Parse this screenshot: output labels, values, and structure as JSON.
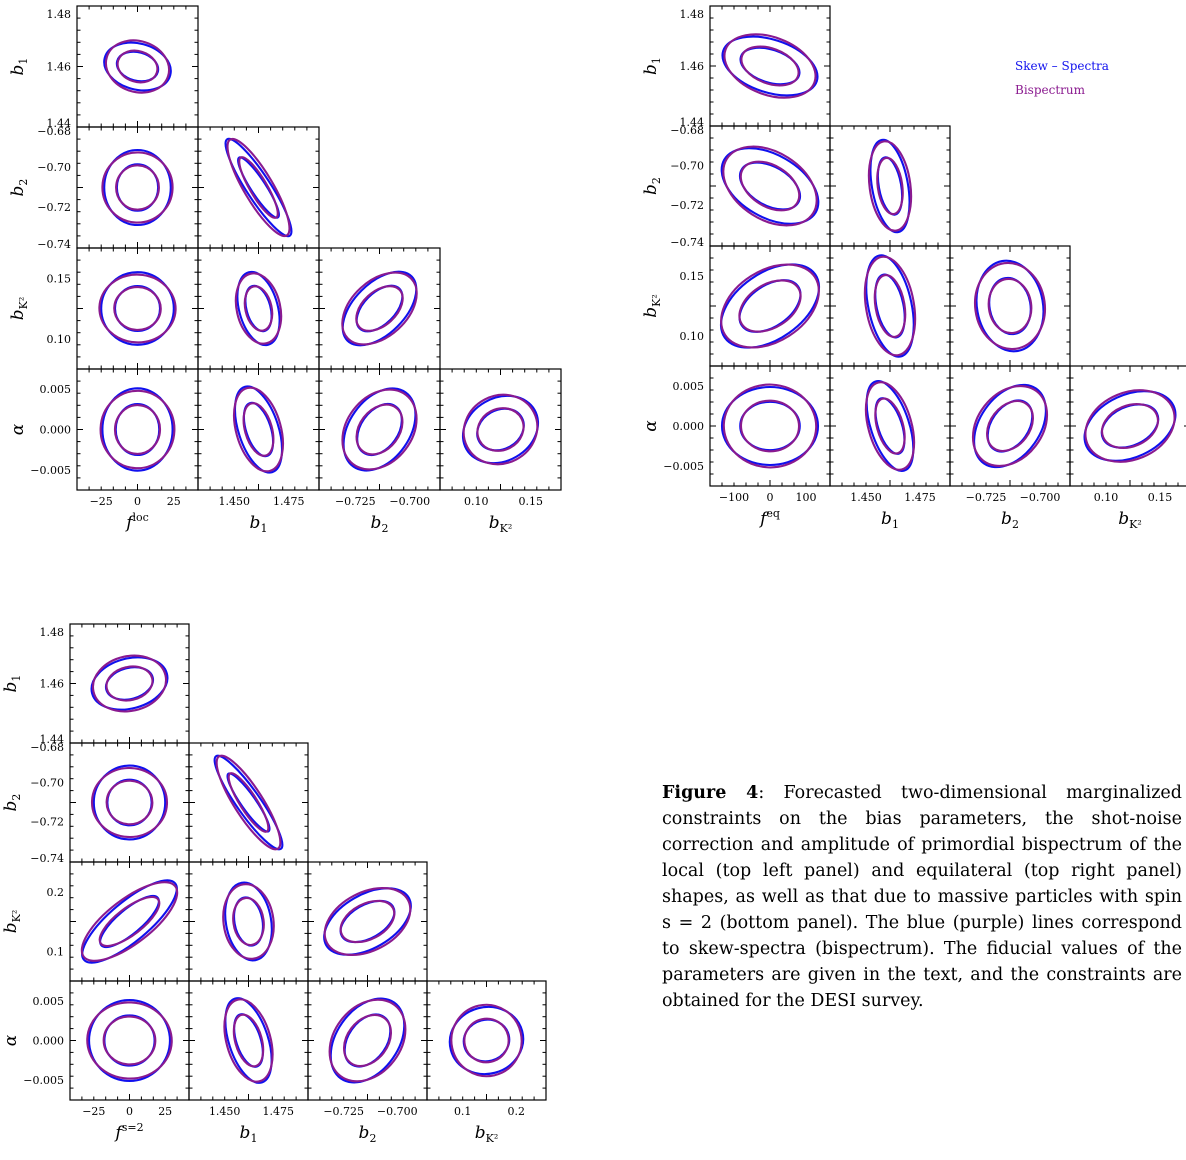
{
  "caption": {
    "label": "Figure 4",
    "text": ": Forecasted two-dimensional marginalized constraints on the bias parameters, the shot-noise correction and amplitude of primordial bispectrum of the local (top left panel) and equilateral (top right panel) shapes, as well as that due to massive particles with spin s = 2 (bottom panel). The blue (purple) lines correspond to skew-spectra (bispectrum). The fiducial values of the parameters are given in the text, and the constraints are obtained for the DESI survey."
  },
  "legend": [
    {
      "label": "Skew – Spectra",
      "color": "#1010ee"
    },
    {
      "label": "Bispectrum",
      "color": "#8a1a8f"
    }
  ],
  "colors": {
    "skew_spectra": "#1010ee",
    "bispectrum": "#8a1a8f"
  },
  "chart_data": [
    {
      "type": "corner-plot",
      "shape": "local",
      "parameters": [
        "f_NL^loc",
        "b_1",
        "b_2",
        "b_{K^2}",
        "α"
      ],
      "x_axis_labels": [
        "f",
        "loc",
        "b",
        "1",
        "b",
        "2",
        "b",
        "K²"
      ],
      "y_axis_labels": [
        "b",
        "1",
        "b",
        "2",
        "b",
        "K²",
        "α"
      ],
      "tick_labels": {
        "x_fNL": [
          "−25",
          "0",
          "25"
        ],
        "x_b1": [
          "1.450",
          "1.475"
        ],
        "x_b2": [
          "−0.725",
          "−0.700"
        ],
        "x_bK2": [
          "0.10",
          "0.15"
        ],
        "y_b1": [
          "1.48",
          "1.46",
          "1.44"
        ],
        "y_b2": [
          "−0.68",
          "−0.70",
          "−0.72",
          "−0.74"
        ],
        "y_bK2": [
          "0.15",
          "0.10"
        ],
        "y_alpha": [
          "0.005",
          "0.000",
          "−0.005"
        ]
      },
      "fiducial": {
        "fNL": 0,
        "b1": 1.46,
        "b2": -0.71,
        "bK2": 0.12,
        "alpha": 0.0
      },
      "sigma": {
        "fNL": 9.5,
        "b1": 0.0055,
        "b2": 0.0075,
        "bK2": 0.022,
        "alpha": 0.0022
      }
    },
    {
      "type": "corner-plot",
      "shape": "equilateral",
      "parameters": [
        "f_NL^eq",
        "b_1",
        "b_2",
        "b_{K^2}",
        "α"
      ],
      "x_axis_labels": [
        "f",
        "eq",
        "b",
        "1",
        "b",
        "2",
        "b",
        "K²"
      ],
      "y_axis_labels": [
        "b",
        "1",
        "b",
        "2",
        "b",
        "K²",
        "α"
      ],
      "tick_labels": {
        "x_fNL": [
          "−100",
          "0",
          "100"
        ],
        "x_b1": [
          "1.450",
          "1.475"
        ],
        "x_b2": [
          "−0.725",
          "−0.700"
        ],
        "x_bK2": [
          "0.10",
          "0.15"
        ],
        "y_b1": [
          "1.48",
          "1.46",
          "1.44"
        ],
        "y_b2": [
          "−0.68",
          "−0.70",
          "−0.72",
          "−0.74"
        ],
        "y_bK2": [
          "0.15",
          "0.10"
        ],
        "y_alpha": [
          "0.005",
          "0.000",
          "−0.005"
        ]
      },
      "fiducial": {
        "fNL": 0,
        "b1": 1.46,
        "b2": -0.71,
        "bK2": 0.12,
        "alpha": 0.0
      },
      "sigma": {
        "fNL": 45,
        "b1": 0.006,
        "b2": 0.0085,
        "bK2": 0.025,
        "alpha": 0.0022
      }
    },
    {
      "type": "corner-plot",
      "shape": "massive spin s=2",
      "parameters": [
        "f_NL^{s=2}",
        "b_1",
        "b_2",
        "b_{K^2}",
        "α"
      ],
      "x_axis_labels": [
        "f",
        "s=2",
        "b",
        "1",
        "b",
        "2",
        "b",
        "K²"
      ],
      "y_axis_labels": [
        "b",
        "1",
        "b",
        "2",
        "b",
        "K²",
        "α"
      ],
      "tick_labels": {
        "x_fNL": [
          "−25",
          "0",
          "25"
        ],
        "x_b1": [
          "1.450",
          "1.475"
        ],
        "x_b2": [
          "−0.725",
          "−0.700"
        ],
        "x_bK2": [
          "0.1",
          "0.2"
        ],
        "y_b1": [
          "1.48",
          "1.46",
          "1.44"
        ],
        "y_b2": [
          "−0.68",
          "−0.70",
          "−0.72",
          "−0.74"
        ],
        "y_bK2": [
          "0.2",
          "0.1"
        ],
        "y_alpha": [
          "0.005",
          "0.000",
          "−0.005"
        ]
      },
      "fiducial": {
        "fNL": 0,
        "b1": 1.46,
        "b2": -0.71,
        "bK2": 0.13,
        "alpha": 0.0
      },
      "sigma": {
        "fNL": 10,
        "b1": 0.0055,
        "b2": 0.0075,
        "bK2": 0.04,
        "alpha": 0.0022
      }
    }
  ]
}
